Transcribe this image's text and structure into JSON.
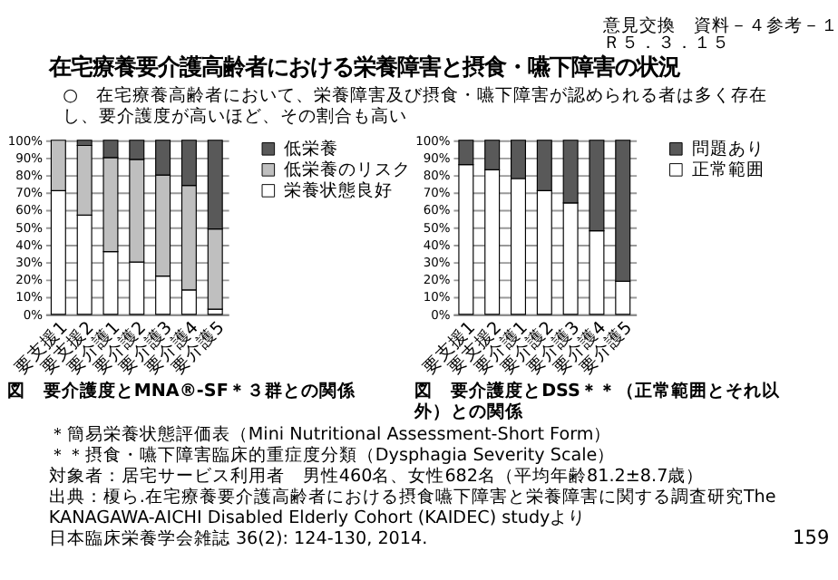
{
  "chart_data": [
    {
      "type": "bar",
      "title": "図　要介護度とMNA®-SF＊３群との関係",
      "stacked": true,
      "categories": [
        "要支援1",
        "要支援2",
        "要介護1",
        "要介護2",
        "要介護3",
        "要介護4",
        "要介護5"
      ],
      "series": [
        {
          "name": "栄養状態良好",
          "color": "#ffffff",
          "values": [
            71,
            57,
            36,
            30,
            22,
            14,
            3
          ]
        },
        {
          "name": "低栄養のリスク",
          "color": "#bfbfbf",
          "values": [
            29,
            40,
            54,
            59,
            58,
            60,
            46
          ]
        },
        {
          "name": "低栄養",
          "color": "#595959",
          "values": [
            0,
            3,
            10,
            11,
            20,
            26,
            51
          ]
        }
      ],
      "ylim": [
        0,
        100
      ],
      "yticks": [
        {
          "value": 0,
          "label": "0%"
        },
        {
          "value": 10,
          "label": "10%"
        },
        {
          "value": 20,
          "label": "20%"
        },
        {
          "value": 30,
          "label": "30%"
        },
        {
          "value": 40,
          "label": "40%"
        },
        {
          "value": 50,
          "label": "50%"
        },
        {
          "value": 60,
          "label": "60%"
        },
        {
          "value": 70,
          "label": "70%"
        },
        {
          "value": 80,
          "label": "80%"
        },
        {
          "value": 90,
          "label": "90%"
        },
        {
          "value": 100,
          "label": "100%"
        }
      ],
      "grid": "y",
      "legend": "right",
      "annotations": [
        "在宅療養要介護高齢者における栄養障害と摂食・嚥下障害の状況",
        "意見交換　資料－４参考－１",
        "Ｒ５．３．１５",
        "○　在宅療養高齢者において、栄養障害及び摂食・嚥下障害が認められる者は多く存在し、要介護度が高いほど、その割合も高い",
        "＊簡易栄養状態評価表（Mini Nutritional Assessment-Short Form）",
        "対象者：居宅サービス利用者　男性460名、女性682名（平均年齢81.2±8.7歳）",
        "出典：榎ら.在宅療養要介護高齢者における摂食嚥下障害と栄養障害に関する調査研究The KANAGAWA-AICHI Disabled Elderly Cohort (KAIDEC) studyより",
        "日本臨床栄養学会雑誌 36(2): 124-130, 2014.",
        "159"
      ]
    },
    {
      "type": "bar",
      "title": "図　要介護度とDSS＊＊（正常範囲とそれ以外）との関係",
      "stacked": true,
      "categories": [
        "要支援1",
        "要支援2",
        "要介護1",
        "要介護2",
        "要介護3",
        "要介護4",
        "要介護5"
      ],
      "series": [
        {
          "name": "正常範囲",
          "color": "#ffffff",
          "values": [
            86,
            83,
            78,
            71,
            64,
            48,
            19
          ]
        },
        {
          "name": "問題あり",
          "color": "#595959",
          "values": [
            14,
            17,
            22,
            29,
            36,
            52,
            81
          ]
        }
      ],
      "ylim": [
        0,
        100
      ],
      "yticks": [
        {
          "value": 0,
          "label": "0%"
        },
        {
          "value": 10,
          "label": "10%"
        },
        {
          "value": 20,
          "label": "20%"
        },
        {
          "value": 30,
          "label": "30%"
        },
        {
          "value": 40,
          "label": "40%"
        },
        {
          "value": 50,
          "label": "50%"
        },
        {
          "value": 60,
          "label": "60%"
        },
        {
          "value": 70,
          "label": "70%"
        },
        {
          "value": 80,
          "label": "80%"
        },
        {
          "value": 90,
          "label": "90%"
        },
        {
          "value": 100,
          "label": "100%"
        }
      ],
      "grid": "y",
      "legend": "right",
      "annotations": [
        "＊＊摂食・嚥下障害臨床的重症度分類（Dysphagia Severity Scale）"
      ]
    }
  ]
}
